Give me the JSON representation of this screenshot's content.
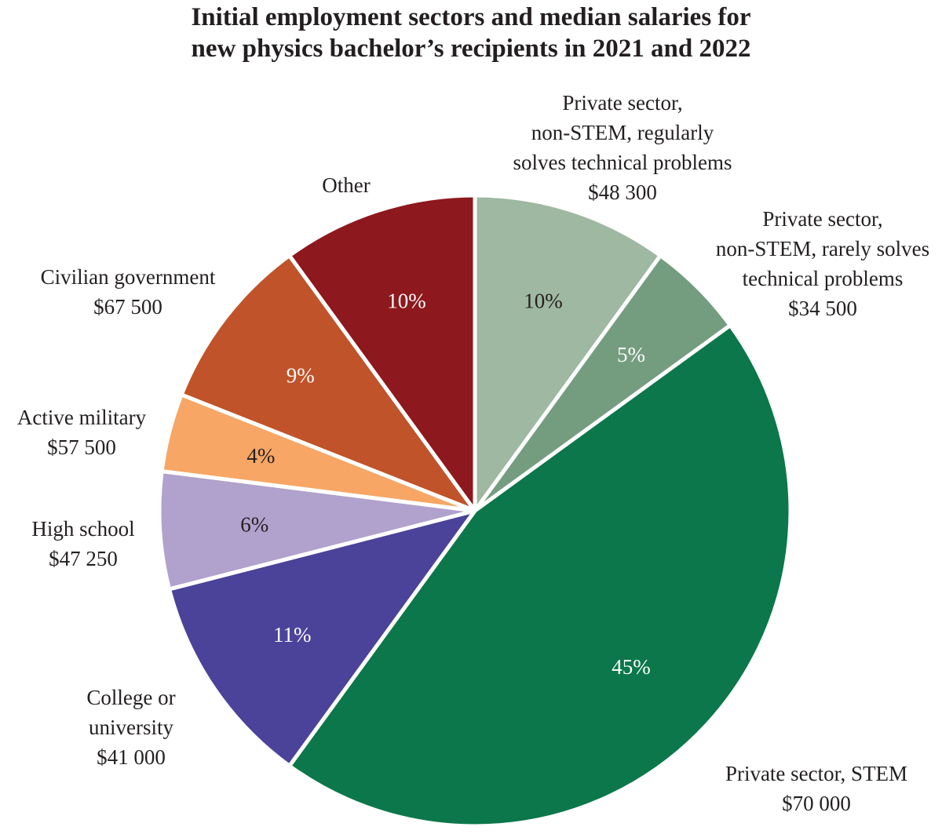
{
  "chart_data": {
    "type": "pie",
    "title_lines": [
      "Initial employment sectors and median salaries for",
      "new physics bachelor’s recipients in 2021 and 2022"
    ],
    "slices": [
      {
        "label_lines": [
          "Private sector,",
          "non-STEM, regularly",
          "solves technical problems",
          "$48 300"
        ],
        "value": 10,
        "pct_label": "10%",
        "color": "#9fb8a1",
        "pct_color": "#231f20"
      },
      {
        "label_lines": [
          "Private sector,",
          "non-STEM, rarely solves",
          "technical problems",
          "$34 500"
        ],
        "value": 5,
        "pct_label": "5%",
        "color": "#749d7f",
        "pct_color": "#ffffff"
      },
      {
        "label_lines": [
          "Private sector, STEM",
          "$70 000"
        ],
        "value": 45,
        "pct_label": "45%",
        "color": "#0b774a",
        "pct_color": "#ffffff"
      },
      {
        "label_lines": [
          "College or",
          "university",
          "$41 000"
        ],
        "value": 11,
        "pct_label": "11%",
        "color": "#4b4399",
        "pct_color": "#ffffff"
      },
      {
        "label_lines": [
          "High school",
          "$47 250"
        ],
        "value": 6,
        "pct_label": "6%",
        "color": "#b1a1cd",
        "pct_color": "#231f20"
      },
      {
        "label_lines": [
          "Active military",
          "$57 500"
        ],
        "value": 4,
        "pct_label": "4%",
        "color": "#f7a665",
        "pct_color": "#231f20"
      },
      {
        "label_lines": [
          "Civilian government",
          "$67 500"
        ],
        "value": 9,
        "pct_label": "9%",
        "color": "#c05329",
        "pct_color": "#ffffff"
      },
      {
        "label_lines": [
          "Other"
        ],
        "value": 10,
        "pct_label": "10%",
        "color": "#8d181d",
        "pct_color": "#ffffff"
      }
    ]
  }
}
